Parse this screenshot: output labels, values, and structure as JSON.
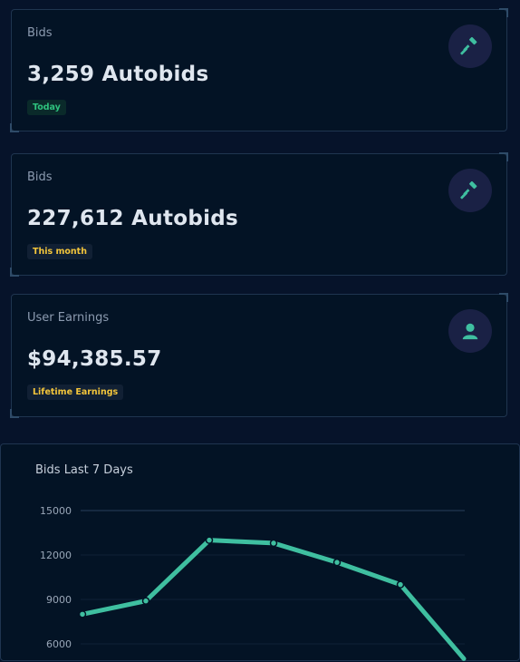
{
  "stats": [
    {
      "label": "Bids",
      "value": "3,259 Autobids",
      "badge": "Today",
      "badge_color": "#2ec27e",
      "icon": "gavel-icon"
    },
    {
      "label": "Bids",
      "value": "227,612 Autobids",
      "badge": "This month",
      "badge_color": "#f3c53b",
      "icon": "gavel-icon"
    },
    {
      "label": "User Earnings",
      "value": "$94,385.57",
      "badge": "Lifetime Earnings",
      "badge_color": "#f3c53b",
      "icon": "user-icon"
    }
  ],
  "accent_color": "#3fbfa0",
  "chart_data": {
    "type": "line",
    "title": "Bids Last 7 Days",
    "y_ticks": [
      15000,
      12000,
      9000,
      6000
    ],
    "ylim": [
      6000,
      15000
    ],
    "series": [
      {
        "values": [
          8000,
          8900,
          13000,
          12800,
          11500,
          10000,
          5000
        ]
      }
    ],
    "grid": true,
    "line_color": "#3fbfa0"
  }
}
